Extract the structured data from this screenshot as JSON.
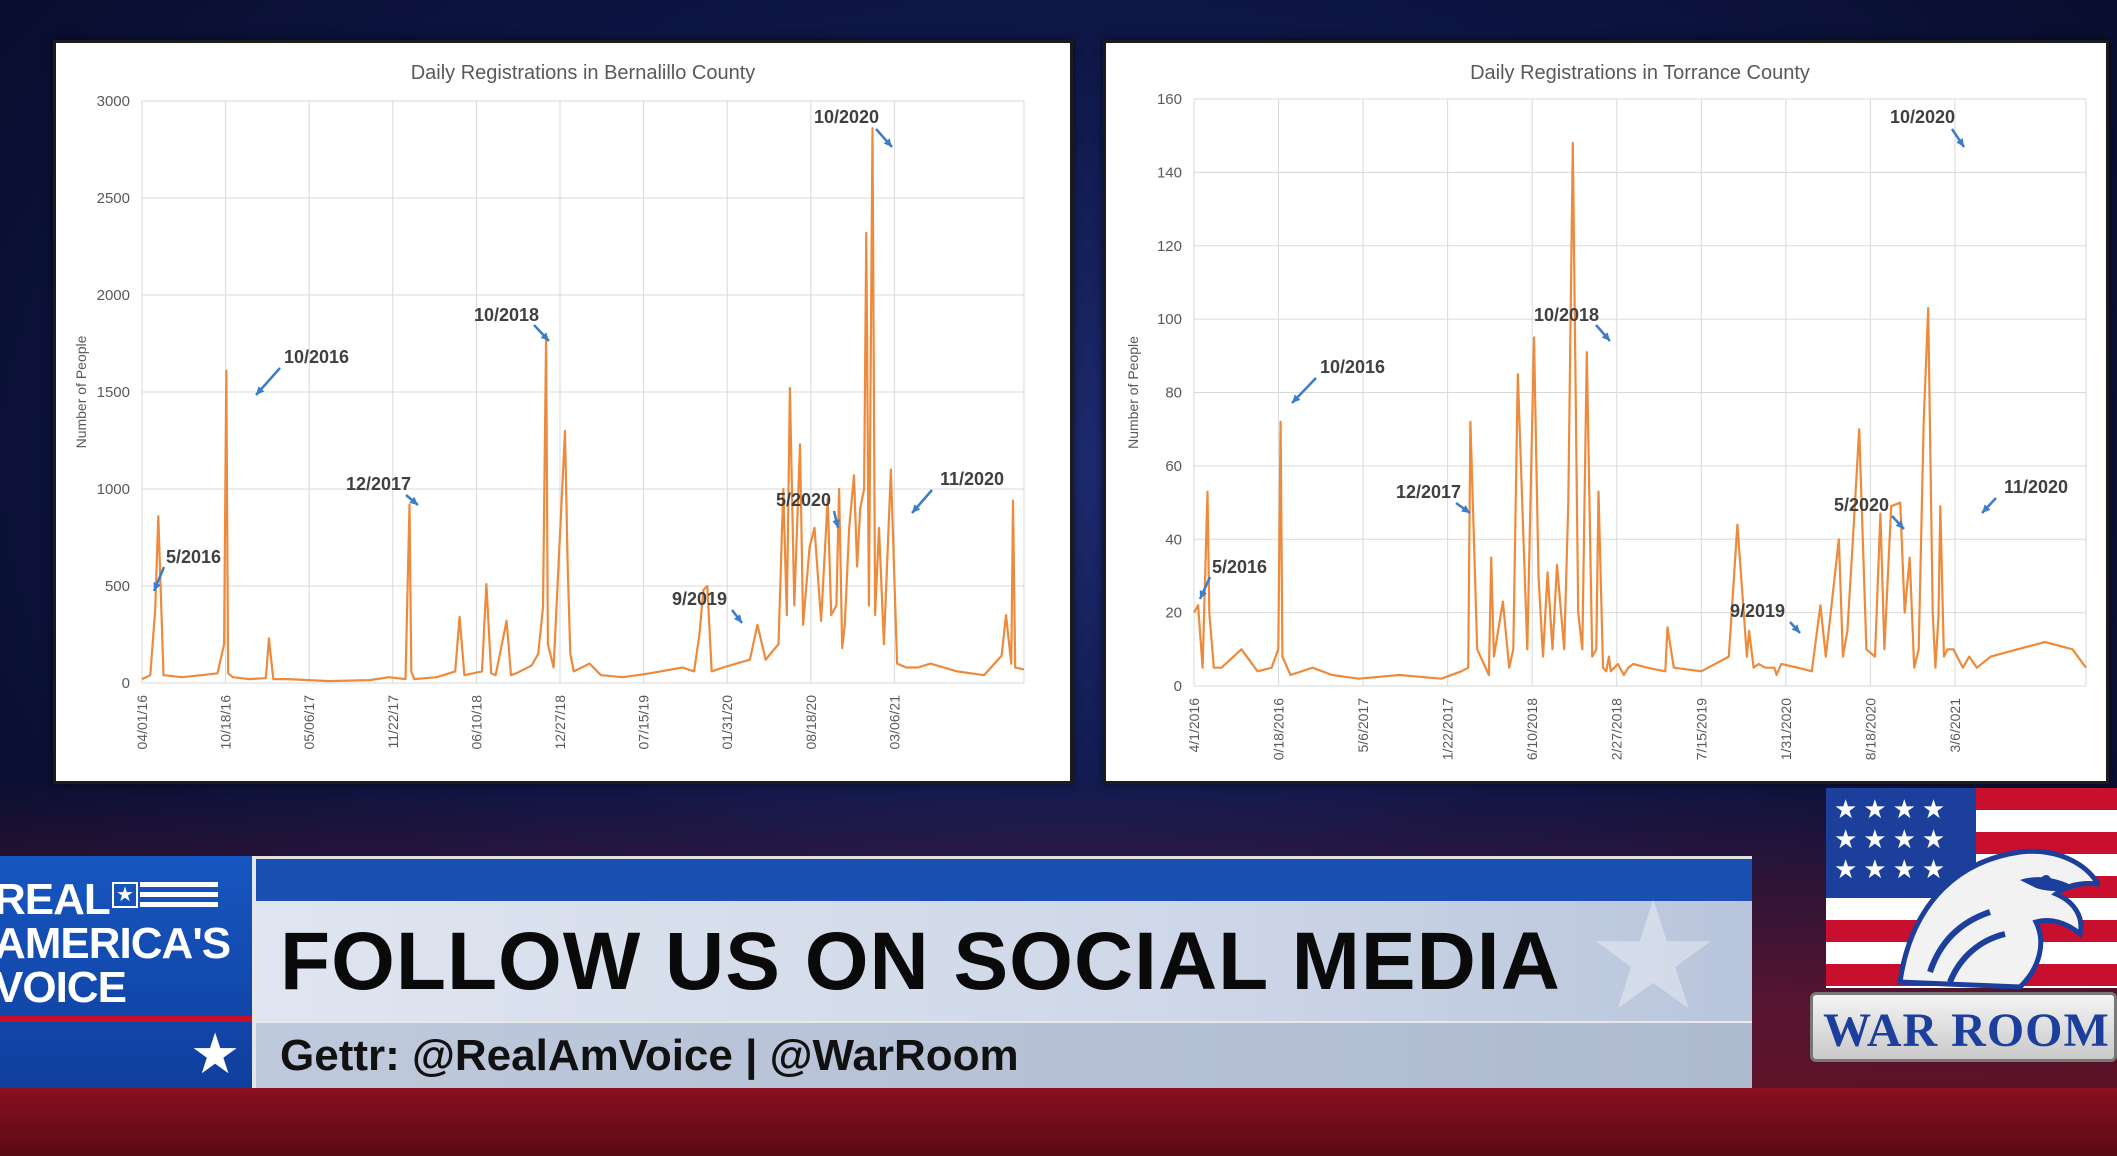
{
  "chart_data": [
    {
      "type": "line",
      "title": "Daily Registrations in Bernalillo County",
      "ylabel": "Number of People",
      "xlabel": "",
      "ylim": [
        0,
        3000
      ],
      "yticks": [
        "0",
        "500",
        "1000",
        "1500",
        "2000",
        "2500",
        "3000"
      ],
      "xticks": [
        "04/01/16",
        "10/18/16",
        "05/06/17",
        "11/22/17",
        "06/10/18",
        "12/27/18",
        "07/15/19",
        "01/31/20",
        "08/18/20",
        "03/06/21"
      ],
      "xlim": [
        "04/01/16",
        "09/30/21"
      ],
      "grid": true,
      "color": "#ed8a3b",
      "series": [
        {
          "x": [
            "04/01/16",
            "04/20/16",
            "05/01/16",
            "05/08/16",
            "05/20/16",
            "07/01/16",
            "08/15/16",
            "09/20/16",
            "10/05/16",
            "10/10/16",
            "10/14/16",
            "10/25/16",
            "12/01/16",
            "01/08/17",
            "01/15/17",
            "01/25/17",
            "03/01/17",
            "06/01/17",
            "09/01/17",
            "10/15/17",
            "11/22/17",
            "12/01/17",
            "12/05/17",
            "12/12/17",
            "02/01/18",
            "03/15/18",
            "03/25/18",
            "04/05/18",
            "05/15/18",
            "05/25/18",
            "06/05/18",
            "06/15/18",
            "07/10/18",
            "07/20/18",
            "08/01/18",
            "09/05/18",
            "09/20/18",
            "10/01/18",
            "10/08/18",
            "10/12/18",
            "10/25/18",
            "11/20/18",
            "11/26/18",
            "12/02/18",
            "12/10/18",
            "01/15/19",
            "02/10/19",
            "04/01/19",
            "06/01/19",
            "08/15/19",
            "09/10/19",
            "09/22/19",
            "10/01/19",
            "10/10/19",
            "10/20/19",
            "11/15/19",
            "12/15/19",
            "01/15/20",
            "02/01/20",
            "02/20/20",
            "03/05/20",
            "03/20/20",
            "03/31/20",
            "04/08/20",
            "04/15/20",
            "04/25/20",
            "05/08/20",
            "05/15/20",
            "05/30/20",
            "06/10/20",
            "06/25/20",
            "07/10/20",
            "07/18/20",
            "07/30/20",
            "08/05/20",
            "08/12/20",
            "08/18/20",
            "08/28/20",
            "09/08/20",
            "09/15/20",
            "09/22/20",
            "10/01/20",
            "10/06/20",
            "10/12/20",
            "10/20/20",
            "10/26/20",
            "11/04/20",
            "11/15/20",
            "12/01/20",
            "12/15/20",
            "01/05/21",
            "02/01/21",
            "03/01/21",
            "05/01/21",
            "07/01/21",
            "08/10/21",
            "08/20/21",
            "09/01/21",
            "09/05/21",
            "09/10/21",
            "09/30/21"
          ],
          "values": [
            20,
            40,
            380,
            860,
            40,
            30,
            40,
            50,
            200,
            1610,
            50,
            30,
            20,
            25,
            230,
            20,
            20,
            10,
            15,
            30,
            20,
            920,
            60,
            20,
            30,
            60,
            340,
            40,
            60,
            510,
            50,
            40,
            320,
            40,
            50,
            90,
            150,
            390,
            1780,
            200,
            80,
            1300,
            620,
            150,
            60,
            100,
            40,
            30,
            50,
            80,
            60,
            250,
            480,
            500,
            60,
            80,
            100,
            120,
            300,
            120,
            160,
            200,
            1000,
            350,
            1520,
            400,
            1230,
            300,
            700,
            800,
            320,
            950,
            350,
            400,
            1000,
            180,
            300,
            800,
            1070,
            600,
            900,
            1000,
            2320,
            400,
            2860,
            350,
            800,
            200,
            1100,
            100,
            80,
            80,
            100,
            60,
            40,
            140,
            350,
            100,
            940,
            80,
            70
          ]
        }
      ],
      "annotations": [
        "5/2016",
        "10/2016",
        "12/2017",
        "10/2018",
        "9/2019",
        "5/2020",
        "10/2020",
        "11/2020"
      ]
    },
    {
      "type": "line",
      "title": "Daily Registrations in Torrance  County",
      "ylabel": "Number of People",
      "xlabel": "",
      "ylim": [
        0,
        160
      ],
      "yticks": [
        "0",
        "20",
        "40",
        "60",
        "80",
        "100",
        "120",
        "140",
        "160"
      ],
      "xticks": [
        "4/1/2016",
        "0/18/2016",
        "5/6/2017",
        "1/22/2017",
        "6/10/2018",
        "2/27/2018",
        "7/15/2019",
        "1/31/2020",
        "8/18/2020",
        "3/6/2021"
      ],
      "xlim": [
        "04/01/16",
        "08/31/21"
      ],
      "grid": true,
      "color": "#ed8a3b",
      "series": [
        {
          "x": [
            "04/01/16",
            "04/10/16",
            "04/20/16",
            "05/01/16",
            "05/05/16",
            "05/15/16",
            "06/01/16",
            "07/15/16",
            "08/20/16",
            "09/20/16",
            "10/05/16",
            "10/10/16",
            "10/14/16",
            "11/01/16",
            "12/20/16",
            "02/01/17",
            "04/01/17",
            "07/01/17",
            "10/01/17",
            "11/15/17",
            "11/30/17",
            "12/05/17",
            "12/20/17",
            "01/15/18",
            "01/20/18",
            "01/26/18",
            "02/15/18",
            "03/01/18",
            "03/10/18",
            "03/20/18",
            "04/10/18",
            "04/25/18",
            "05/05/18",
            "05/15/18",
            "05/25/18",
            "06/05/18",
            "06/15/18",
            "07/01/18",
            "07/10/18",
            "07/20/18",
            "08/01/18",
            "08/10/18",
            "08/20/18",
            "09/01/18",
            "09/10/18",
            "09/15/18",
            "09/25/18",
            "10/02/18",
            "10/08/18",
            "10/12/18",
            "10/28/18",
            "11/10/18",
            "11/20/18",
            "12/01/18",
            "01/01/19",
            "02/10/19",
            "02/15/19",
            "03/01/19",
            "05/01/19",
            "07/01/19",
            "07/20/19",
            "08/10/19",
            "08/15/19",
            "08/25/19",
            "09/05/19",
            "09/20/19",
            "10/10/19",
            "10/15/19",
            "10/25/19",
            "12/01/19",
            "01/01/20",
            "01/20/20",
            "02/01/20",
            "03/01/20",
            "03/10/20",
            "03/20/20",
            "04/01/20",
            "04/15/20",
            "05/01/20",
            "05/20/20",
            "06/01/20",
            "06/10/20",
            "06/25/20",
            "07/15/20",
            "07/25/20",
            "08/05/20",
            "08/15/20",
            "08/25/20",
            "09/05/20",
            "09/15/20",
            "09/25/20",
            "10/01/20",
            "10/08/20",
            "10/12/20",
            "10/20/20",
            "10/28/20",
            "11/10/20",
            "12/01/20",
            "12/15/20",
            "01/01/21",
            "02/01/21",
            "04/01/21",
            "06/01/21",
            "08/01/21",
            "08/31/21"
          ],
          "values": [
            20,
            22,
            5,
            53,
            20,
            5,
            5,
            10,
            4,
            5,
            10,
            72,
            8,
            3,
            5,
            3,
            2,
            3,
            2,
            4,
            5,
            72,
            10,
            3,
            35,
            8,
            23,
            5,
            10,
            85,
            10,
            95,
            30,
            8,
            31,
            10,
            33,
            10,
            50,
            148,
            20,
            10,
            91,
            8,
            10,
            53,
            5,
            4,
            8,
            4,
            6,
            3,
            5,
            6,
            5,
            4,
            16,
            5,
            4,
            8,
            44,
            8,
            15,
            5,
            6,
            5,
            5,
            3,
            6,
            5,
            4,
            22,
            8,
            40,
            8,
            15,
            40,
            70,
            10,
            8,
            47,
            10,
            49,
            50,
            20,
            35,
            5,
            10,
            72,
            103,
            20,
            5,
            19,
            49,
            8,
            10,
            10,
            5,
            8,
            5,
            8,
            10,
            12,
            10,
            5
          ]
        }
      ],
      "annotations": [
        "5/2016",
        "10/2016",
        "12/2017",
        "10/2018",
        "9/2019",
        "5/2020",
        "10/2020",
        "11/2020"
      ]
    }
  ],
  "banner": {
    "brand_line1": "REAL",
    "brand_line2": "AMERICA'S",
    "brand_line3": "VOICE",
    "headline": "FOLLOW US ON SOCIAL MEDIA",
    "handles": "Gettr: @RealAmVoice | @WarRoom"
  },
  "logo": {
    "text": "WAR ROOM",
    "icon": "eagle-flag-icon"
  }
}
